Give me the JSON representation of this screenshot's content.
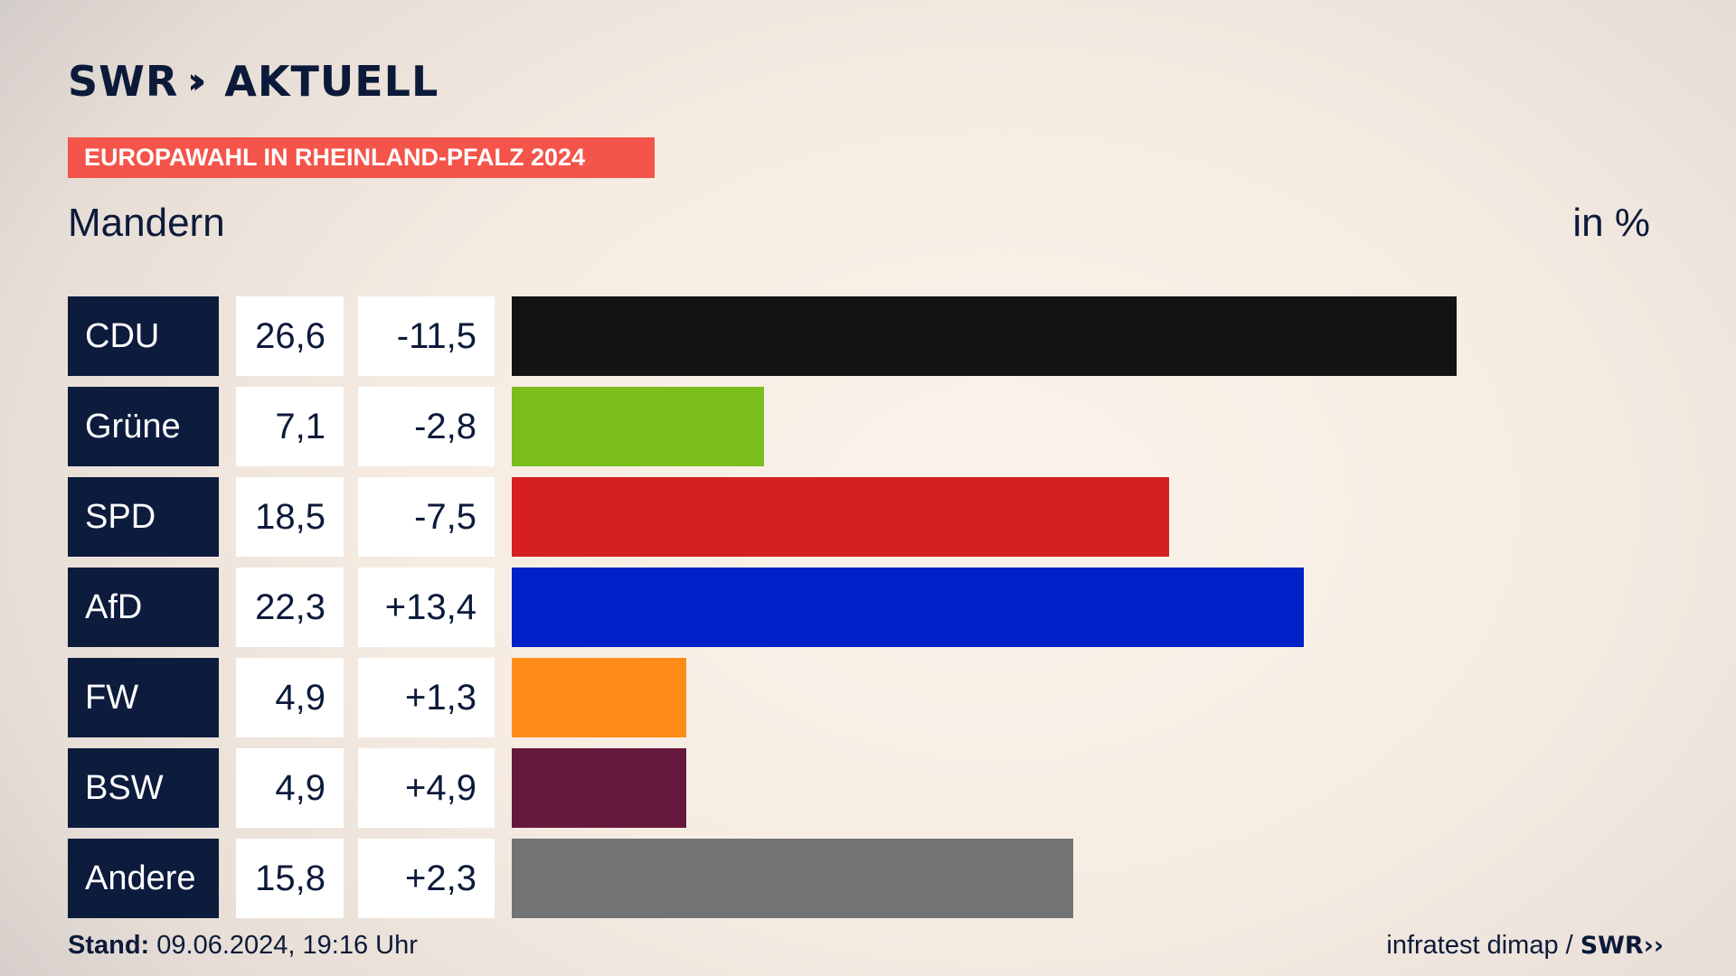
{
  "header": {
    "logo_text": "SWR",
    "logo_chevrons": "››",
    "logo_word": "AKTUELL",
    "banner": "EUROPAWAHL IN RHEINLAND-PFALZ 2024",
    "place": "Mandern",
    "unit": "in %"
  },
  "colors": {
    "banner": "#f4544a",
    "navy": "#0d1b3d"
  },
  "chart_data": {
    "type": "bar",
    "orientation": "horizontal",
    "categories": [
      "CDU",
      "Grüne",
      "SPD",
      "AfD",
      "FW",
      "BSW",
      "Andere"
    ],
    "values": [
      26.6,
      7.1,
      18.5,
      22.3,
      4.9,
      4.9,
      15.8
    ],
    "values_label": [
      "26,6",
      "7,1",
      "18,5",
      "22,3",
      "4,9",
      "4,9",
      "15,8"
    ],
    "diffs": [
      -11.5,
      -2.8,
      -7.5,
      13.4,
      1.3,
      4.9,
      2.3
    ],
    "diffs_label": [
      "-11,5",
      "-2,8",
      "-7,5",
      "+13,4",
      "+1,3",
      "+4,9",
      "+2,3"
    ],
    "colors": [
      "#131313",
      "#7abd1d",
      "#d61f1f",
      "#0020c8",
      "#ff8c17",
      "#66193d",
      "#727374"
    ],
    "xlim": [
      0,
      26.6
    ]
  },
  "footer": {
    "stand_label": "Stand:",
    "stand_value": "09.06.2024, 19:16 Uhr",
    "source": "infratest dimap /",
    "source_logo": "SWR"
  }
}
